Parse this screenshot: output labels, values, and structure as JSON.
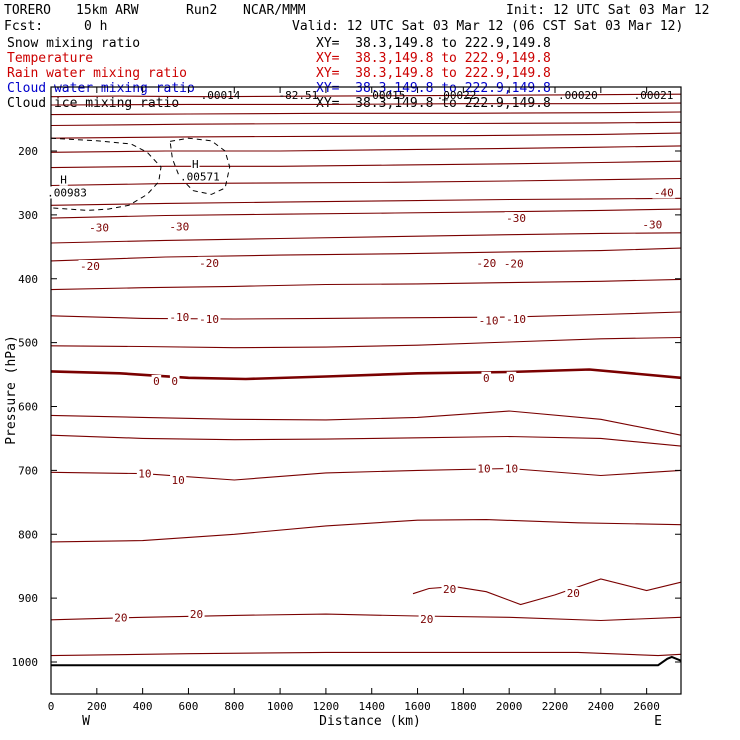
{
  "header": {
    "model": "TORERO",
    "resolution": "15km ARW",
    "run": "Run2",
    "org": "NCAR/MMM",
    "init": "Init: 12 UTC Sat 03 Mar 12",
    "fcst_label": "Fcst:",
    "fcst_value": "0 h",
    "valid": "Valid: 12 UTC Sat 03 Mar 12 (06 CST Sat 03 Mar 12)"
  },
  "legend": [
    {
      "label": "Snow mixing ratio",
      "xy": "XY=  38.3,149.8 to 222.9,149.8",
      "color": "#000000"
    },
    {
      "label": "Temperature",
      "xy": "XY=  38.3,149.8 to 222.9,149.8",
      "color": "#cc0000"
    },
    {
      "label": "Rain water mixing ratio",
      "xy": "XY=  38.3,149.8 to 222.9,149.8",
      "color": "#cc0000"
    },
    {
      "label": "Cloud water mixing ratio",
      "xy": "XY=  38.3,149.8 to 222.9,149.8",
      "color": "#0000cc"
    },
    {
      "label": "Cloud ice mixing ratio",
      "xy": "XY=  38.3,149.8 to 222.9,149.8",
      "color": "#000000"
    }
  ],
  "chart_data": {
    "type": "line",
    "xlabel": "Distance (km)",
    "ylabel": "Pressure (hPa)",
    "xlim": [
      0,
      2750
    ],
    "ylim": [
      1050,
      100
    ],
    "xticks": [
      "0",
      "200",
      "400",
      "600",
      "800",
      "1000",
      "1200",
      "1400",
      "1600",
      "1800",
      "2000",
      "2200",
      "2400",
      "2600"
    ],
    "yticks": [
      "200",
      "300",
      "400",
      "500",
      "600",
      "700",
      "800",
      "900",
      "1000"
    ],
    "x_end_labels": {
      "left": "W",
      "right": "E"
    },
    "contour_color": "#7a0000",
    "isotherm_labels": [
      {
        "text": "-40",
        "x": 2675,
        "p": 265
      },
      {
        "text": "-30",
        "x": 210,
        "p": 320
      },
      {
        "text": "-30",
        "x": 560,
        "p": 318
      },
      {
        "text": "-30",
        "x": 2030,
        "p": 305
      },
      {
        "text": "-30",
        "x": 2625,
        "p": 315
      },
      {
        "text": "-20",
        "x": 170,
        "p": 380
      },
      {
        "text": "-20",
        "x": 690,
        "p": 375
      },
      {
        "text": "-20",
        "x": 1900,
        "p": 375
      },
      {
        "text": "-20",
        "x": 2020,
        "p": 376
      },
      {
        "text": "-10",
        "x": 560,
        "p": 460
      },
      {
        "text": "-10",
        "x": 690,
        "p": 463
      },
      {
        "text": "-10",
        "x": 1910,
        "p": 465
      },
      {
        "text": "-10",
        "x": 2030,
        "p": 463
      },
      {
        "text": "0",
        "x": 460,
        "p": 560
      },
      {
        "text": "0",
        "x": 540,
        "p": 560
      },
      {
        "text": "0",
        "x": 1900,
        "p": 555
      },
      {
        "text": "0",
        "x": 2010,
        "p": 555
      },
      {
        "text": "10",
        "x": 410,
        "p": 705
      },
      {
        "text": "10",
        "x": 555,
        "p": 715
      },
      {
        "text": "10",
        "x": 1890,
        "p": 697
      },
      {
        "text": "10",
        "x": 2010,
        "p": 697
      },
      {
        "text": "20",
        "x": 1740,
        "p": 886
      },
      {
        "text": "20",
        "x": 2280,
        "p": 892
      },
      {
        "text": "20",
        "x": 305,
        "p": 930
      },
      {
        "text": "20",
        "x": 635,
        "p": 925
      },
      {
        "text": "20",
        "x": 1640,
        "p": 933
      }
    ],
    "isotherms_thin": [
      {
        "x": [
          0,
          300,
          700,
          1200,
          1800,
          2300,
          2750
        ],
        "p": [
          115,
          114,
          115,
          114,
          113,
          112,
          111
        ]
      },
      {
        "x": [
          0,
          600,
          1200,
          1800,
          2400,
          2750
        ],
        "p": [
          128,
          127,
          127,
          126,
          126,
          125
        ]
      },
      {
        "x": [
          0,
          600,
          1200,
          1800,
          2400,
          2750
        ],
        "p": [
          143,
          142,
          141,
          141,
          140,
          139
        ]
      },
      {
        "x": [
          0,
          600,
          1200,
          1800,
          2400,
          2750
        ],
        "p": [
          160,
          158,
          157,
          157,
          156,
          155
        ]
      },
      {
        "x": [
          0,
          600,
          1200,
          1800,
          2400,
          2750
        ],
        "p": [
          180,
          178,
          177,
          176,
          174,
          172
        ]
      },
      {
        "x": [
          0,
          500,
          1000,
          1500,
          2000,
          2400,
          2750
        ],
        "p": [
          202,
          200,
          200,
          198,
          196,
          194,
          192
        ]
      },
      {
        "x": [
          0,
          500,
          1000,
          1500,
          2000,
          2400,
          2750
        ],
        "p": [
          226,
          224,
          224,
          222,
          220,
          218,
          216
        ]
      },
      {
        "x": [
          0,
          500,
          1000,
          1500,
          2000,
          2400,
          2750
        ],
        "p": [
          254,
          251,
          250,
          249,
          247,
          245,
          243
        ]
      },
      {
        "x": [
          0,
          500,
          1000,
          1500,
          2000,
          2400,
          2750
        ],
        "p": [
          285,
          282,
          280,
          278,
          276,
          275,
          274
        ]
      },
      {
        "x": [
          0,
          500,
          1000,
          1500,
          2000,
          2400,
          2750
        ],
        "p": [
          305,
          301,
          299,
          297,
          295,
          293,
          291
        ]
      },
      {
        "x": [
          0,
          500,
          1000,
          1500,
          2000,
          2400,
          2750
        ],
        "p": [
          344,
          340,
          337,
          334,
          331,
          329,
          328
        ]
      },
      {
        "x": [
          0,
          500,
          1000,
          1500,
          2000,
          2400,
          2750
        ],
        "p": [
          372,
          366,
          363,
          361,
          358,
          356,
          352
        ]
      },
      {
        "x": [
          0,
          400,
          800,
          1200,
          1600,
          2000,
          2400,
          2750
        ],
        "p": [
          417,
          414,
          412,
          409,
          408,
          406,
          404,
          401
        ]
      },
      {
        "x": [
          0,
          400,
          800,
          1200,
          1600,
          2000,
          2400,
          2750
        ],
        "p": [
          458,
          462,
          463,
          462,
          461,
          460,
          456,
          452
        ]
      },
      {
        "x": [
          0,
          400,
          800,
          1200,
          1600,
          2000,
          2400,
          2750
        ],
        "p": [
          505,
          506,
          508,
          507,
          504,
          499,
          494,
          492
        ]
      },
      {
        "x": [
          0,
          400,
          800,
          1200,
          1600,
          2000,
          2400,
          2750
        ],
        "p": [
          614,
          617,
          620,
          621,
          617,
          607,
          620,
          645
        ]
      },
      {
        "x": [
          0,
          400,
          800,
          1200,
          1600,
          2000,
          2400,
          2750
        ],
        "p": [
          645,
          650,
          652,
          651,
          649,
          647,
          650,
          662
        ]
      },
      {
        "x": [
          0,
          400,
          800,
          1200,
          1600,
          2000,
          2400,
          2750
        ],
        "p": [
          703,
          705,
          715,
          704,
          700,
          697,
          708,
          700
        ]
      },
      {
        "x": [
          0,
          400,
          800,
          1200,
          1600,
          1900,
          2300,
          2750
        ],
        "p": [
          812,
          810,
          800,
          787,
          778,
          777,
          782,
          785
        ]
      },
      {
        "x": [
          0,
          400,
          800,
          1200,
          1600,
          2000,
          2400,
          2750
        ],
        "p": [
          934,
          930,
          927,
          925,
          928,
          930,
          935,
          930
        ]
      },
      {
        "x": [
          0,
          600,
          1200,
          1800,
          2300,
          2650,
          2750
        ],
        "p": [
          990,
          987,
          985,
          985,
          985,
          990,
          988
        ]
      }
    ],
    "isotherm_zero": {
      "x": [
        0,
        300,
        600,
        850,
        1200,
        1600,
        2000,
        2350,
        2750
      ],
      "p": [
        545,
        548,
        555,
        557,
        553,
        548,
        546,
        542,
        555
      ]
    },
    "isotherm_twenty_lobe": {
      "x": [
        1580,
        1650,
        1760,
        1900,
        2050,
        2200,
        2400,
        2600,
        2750
      ],
      "p": [
        893,
        885,
        882,
        890,
        910,
        895,
        870,
        888,
        875
      ]
    },
    "snow_contours": [
      {
        "x": [
          0,
          100,
          200,
          350,
          420,
          480,
          470,
          420,
          340,
          250,
          160,
          80,
          0
        ],
        "p": [
          180,
          182,
          184,
          189,
          202,
          225,
          248,
          268,
          285,
          291,
          293,
          291,
          289
        ]
      },
      {
        "x": [
          520,
          600,
          700,
          760,
          780,
          760,
          700,
          620,
          560,
          530,
          520
        ],
        "p": [
          185,
          180,
          184,
          200,
          225,
          258,
          268,
          262,
          240,
          212,
          185
        ]
      }
    ],
    "extrema_labels": [
      {
        "text": "H",
        "x": 55,
        "p": 245
      },
      {
        "text": ".00983",
        "x": 70,
        "p": 265
      },
      {
        "text": "H",
        "x": 630,
        "p": 220
      },
      {
        "text": ".00571",
        "x": 650,
        "p": 240
      }
    ],
    "top_values": [
      {
        "text": ".00014",
        "x": 740
      },
      {
        "text": "-82.51",
        "x": 1080
      },
      {
        "text": ".00015",
        "x": 1460
      },
      {
        "text": ".00022",
        "x": 1770
      },
      {
        "text": ".00020",
        "x": 2300
      },
      {
        "text": ".00021",
        "x": 2630
      }
    ],
    "terrain": {
      "x": [
        0,
        1000,
        2000,
        2600,
        2650,
        2690,
        2710,
        2750
      ],
      "p": [
        1005,
        1005,
        1005,
        1005,
        1005,
        995,
        992,
        998
      ]
    }
  }
}
